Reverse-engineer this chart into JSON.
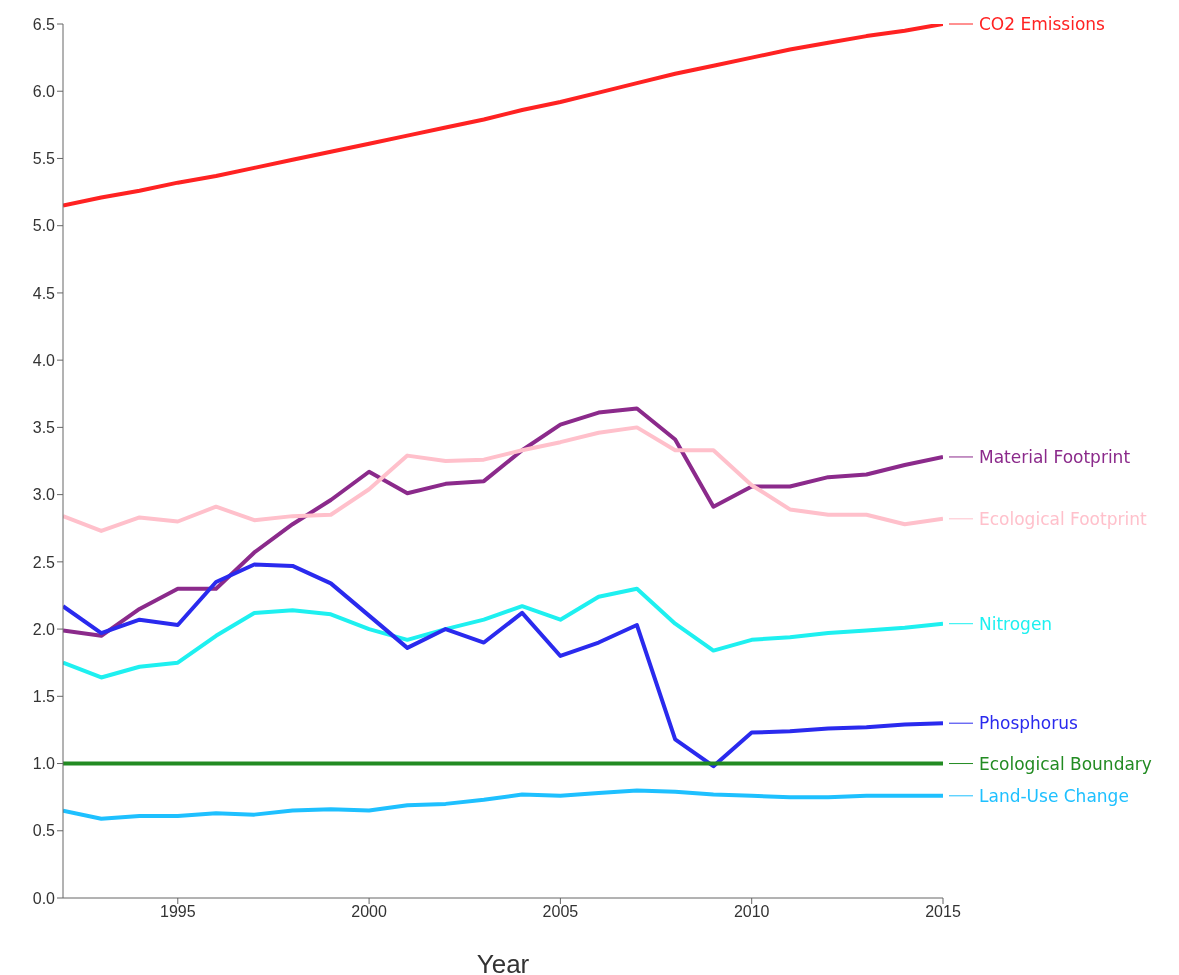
{
  "chart_data": {
    "type": "line",
    "xlabel": "Year",
    "x": [
      1992,
      1993,
      1994,
      1995,
      1996,
      1997,
      1998,
      1999,
      2000,
      2001,
      2002,
      2003,
      2004,
      2005,
      2006,
      2007,
      2008,
      2009,
      2010,
      2011,
      2012,
      2013,
      2014,
      2015
    ],
    "series": [
      {
        "name": "CO2 Emissions",
        "color": "#ff2222",
        "values": [
          5.15,
          5.21,
          5.26,
          5.32,
          5.37,
          5.43,
          5.49,
          5.55,
          5.61,
          5.67,
          5.73,
          5.79,
          5.86,
          5.92,
          5.99,
          6.06,
          6.13,
          6.19,
          6.25,
          6.31,
          6.36,
          6.41,
          6.45,
          6.5
        ]
      },
      {
        "name": "Material Footprint",
        "color": "#8b2a8b",
        "values": [
          1.99,
          1.95,
          2.15,
          2.3,
          2.3,
          2.57,
          2.78,
          2.96,
          3.17,
          3.01,
          3.08,
          3.1,
          3.33,
          3.52,
          3.61,
          3.64,
          3.41,
          2.91,
          3.06,
          3.06,
          3.13,
          3.15,
          3.22,
          3.28
        ]
      },
      {
        "name": "Ecological Footprint",
        "color": "#ffc0cb",
        "values": [
          2.84,
          2.73,
          2.83,
          2.8,
          2.91,
          2.81,
          2.84,
          2.85,
          3.04,
          3.29,
          3.25,
          3.26,
          3.33,
          3.39,
          3.46,
          3.5,
          3.33,
          3.33,
          3.07,
          2.89,
          2.85,
          2.85,
          2.78,
          2.82
        ]
      },
      {
        "name": "Nitrogen",
        "color": "#1ef0f0",
        "values": [
          1.75,
          1.64,
          1.72,
          1.75,
          1.95,
          2.12,
          2.14,
          2.11,
          2.0,
          1.92,
          2.0,
          2.07,
          2.17,
          2.07,
          2.24,
          2.3,
          2.04,
          1.84,
          1.92,
          1.94,
          1.97,
          1.99,
          2.01,
          2.04
        ]
      },
      {
        "name": "Phosphorus",
        "color": "#2a2aee",
        "values": [
          2.17,
          1.97,
          2.07,
          2.03,
          2.35,
          2.48,
          2.47,
          2.34,
          2.1,
          1.86,
          2.0,
          1.9,
          2.12,
          1.8,
          1.9,
          2.03,
          1.18,
          0.98,
          1.23,
          1.24,
          1.26,
          1.27,
          1.29,
          1.3
        ]
      },
      {
        "name": "Ecological Boundary",
        "color": "#228b22",
        "values": [
          1,
          1,
          1,
          1,
          1,
          1,
          1,
          1,
          1,
          1,
          1,
          1,
          1,
          1,
          1,
          1,
          1,
          1,
          1,
          1,
          1,
          1,
          1,
          1
        ]
      },
      {
        "name": "Land-Use Change",
        "color": "#1ec0ff",
        "values": [
          0.65,
          0.59,
          0.61,
          0.61,
          0.63,
          0.62,
          0.65,
          0.66,
          0.65,
          0.69,
          0.7,
          0.73,
          0.77,
          0.76,
          0.78,
          0.8,
          0.79,
          0.77,
          0.76,
          0.75,
          0.75,
          0.76,
          0.76,
          0.76
        ]
      }
    ],
    "xlim": [
      1992,
      2015
    ],
    "xticks": [
      1995,
      2000,
      2005,
      2010,
      2015
    ],
    "ylim": [
      0,
      6.5
    ],
    "yticks": [
      {
        "value": 0,
        "label": "0.0"
      },
      {
        "value": 0.5,
        "label": "0.5"
      },
      {
        "value": 1,
        "label": "1.0"
      },
      {
        "value": 1.5,
        "label": "1.5"
      },
      {
        "value": 2,
        "label": "2.0"
      },
      {
        "value": 2.5,
        "label": "2.5"
      },
      {
        "value": 3,
        "label": "3.0"
      },
      {
        "value": 3.5,
        "label": "3.5"
      },
      {
        "value": 4,
        "label": "4.0"
      },
      {
        "value": 4.5,
        "label": "4.5"
      },
      {
        "value": 5,
        "label": "5.0"
      },
      {
        "value": 5.5,
        "label": "5.5"
      },
      {
        "value": 6,
        "label": "6.0"
      },
      {
        "value": 6.5,
        "label": "6.5"
      }
    ],
    "grid": false,
    "legend": "right",
    "marker": "none",
    "line_style": "solid"
  }
}
